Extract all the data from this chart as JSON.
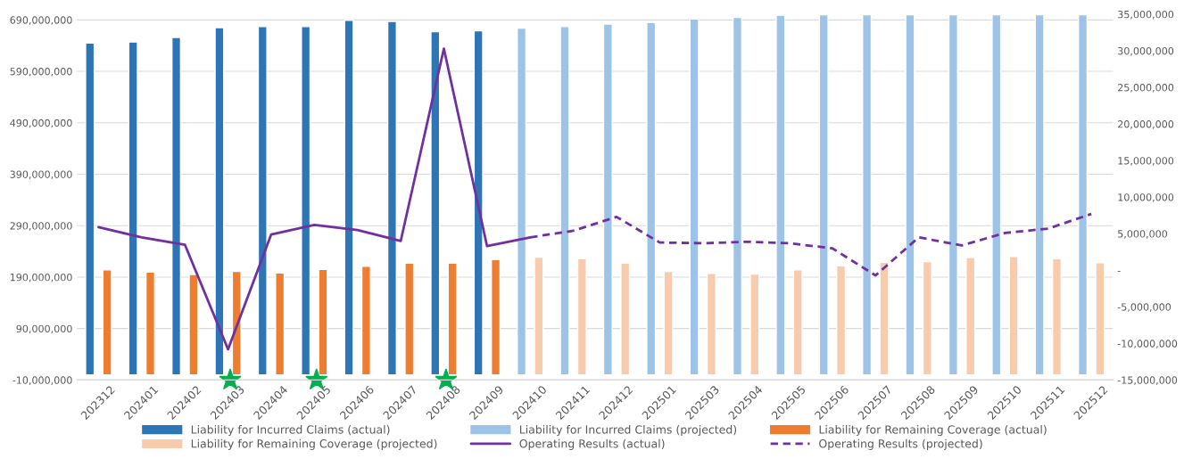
{
  "chart_data": {
    "type": "bar",
    "categories": [
      "202312",
      "202401",
      "202402",
      "202403",
      "202404",
      "202405",
      "202406",
      "202407",
      "202408",
      "202409",
      "202410",
      "202411",
      "202412",
      "202501",
      "202503",
      "202504",
      "202505",
      "202506",
      "202507",
      "202508",
      "202509",
      "202510",
      "202511",
      "202512"
    ],
    "series": [
      {
        "name": "Liability for Incurred Claims (actual)",
        "color": "#2e75b6",
        "values": [
          645000000,
          647000000,
          656000000,
          675000000,
          677000000,
          677000000,
          689000000,
          687000000,
          667000000,
          669000000,
          null,
          null,
          null,
          null,
          null,
          null,
          null,
          null,
          null,
          null,
          null,
          null,
          null,
          null
        ]
      },
      {
        "name": "Liability for Incurred Claims (projected)",
        "color": "#9dc3e6",
        "values": [
          null,
          null,
          null,
          null,
          null,
          null,
          null,
          null,
          null,
          null,
          674000000,
          677000000,
          682000000,
          685000000,
          692000000,
          695000000,
          699000000,
          700000000,
          700000000,
          700000000,
          700000000,
          700000000,
          700000000,
          700000000
        ]
      },
      {
        "name": "Liability for Remaining Coverage (actual)",
        "color": "#ed7d31",
        "values": [
          204000000,
          200000000,
          195000000,
          201000000,
          198000000,
          205000000,
          211000000,
          217000000,
          217000000,
          224000000,
          null,
          null,
          null,
          null,
          null,
          null,
          null,
          null,
          null,
          null,
          null,
          null,
          null,
          null
        ]
      },
      {
        "name": "Liability for Remaining Coverage (projected)",
        "color": "#f8cbad",
        "values": [
          null,
          null,
          null,
          null,
          null,
          null,
          null,
          null,
          null,
          null,
          229000000,
          226000000,
          217000000,
          201000000,
          197000000,
          196000000,
          204000000,
          212000000,
          219000000,
          220000000,
          228000000,
          230000000,
          226000000,
          218000000
        ]
      },
      {
        "name": "Operating Results (actual)",
        "type": "line",
        "axis": "y2",
        "line_style": "solid",
        "color": "#7030a0",
        "values": [
          5900000,
          4500000,
          3500000,
          -10800000,
          4900000,
          6200000,
          5500000,
          4000000,
          30300000,
          3300000,
          4500000,
          null,
          null,
          null,
          null,
          null,
          null,
          null,
          null,
          null,
          null,
          null,
          null,
          null
        ]
      },
      {
        "name": "Operating Results (projected)",
        "type": "line",
        "axis": "y2",
        "line_style": "dashed",
        "color": "#7030a0",
        "values": [
          null,
          null,
          null,
          null,
          null,
          null,
          null,
          null,
          null,
          null,
          4500000,
          5400000,
          7300000,
          3800000,
          3700000,
          3900000,
          3700000,
          3000000,
          -700000,
          4500000,
          3400000,
          5100000,
          5700000,
          7700000
        ]
      }
    ],
    "ylim": [
      -10000000,
      701000000
    ],
    "yticks": [
      {
        "value": -10000000,
        "label": "-10,000,000"
      },
      {
        "value": 90000000,
        "label": "90,000,000"
      },
      {
        "value": 190000000,
        "label": "190,000,000"
      },
      {
        "value": 290000000,
        "label": "290,000,000"
      },
      {
        "value": 390000000,
        "label": "390,000,000"
      },
      {
        "value": 490000000,
        "label": "490,000,000"
      },
      {
        "value": 590000000,
        "label": "590,000,000"
      },
      {
        "value": 690000000,
        "label": "690,000,000"
      }
    ],
    "y2lim": [
      -15000000,
      35000000
    ],
    "y2ticks": [
      {
        "value": -15000000,
        "label": "-15,000,000"
      },
      {
        "value": -10000000,
        "label": "-10,000,000"
      },
      {
        "value": -5000000,
        "label": "-5,000,000"
      },
      {
        "value": 0,
        "label": "-"
      },
      {
        "value": 5000000,
        "label": "5,000,000"
      },
      {
        "value": 10000000,
        "label": "10,000,000"
      },
      {
        "value": 15000000,
        "label": "15,000,000"
      },
      {
        "value": 20000000,
        "label": "20,000,000"
      },
      {
        "value": 25000000,
        "label": "25,000,000"
      },
      {
        "value": 30000000,
        "label": "30,000,000"
      },
      {
        "value": 35000000,
        "label": "35,000,000"
      }
    ],
    "grid": "y",
    "legend": "bottom"
  }
}
